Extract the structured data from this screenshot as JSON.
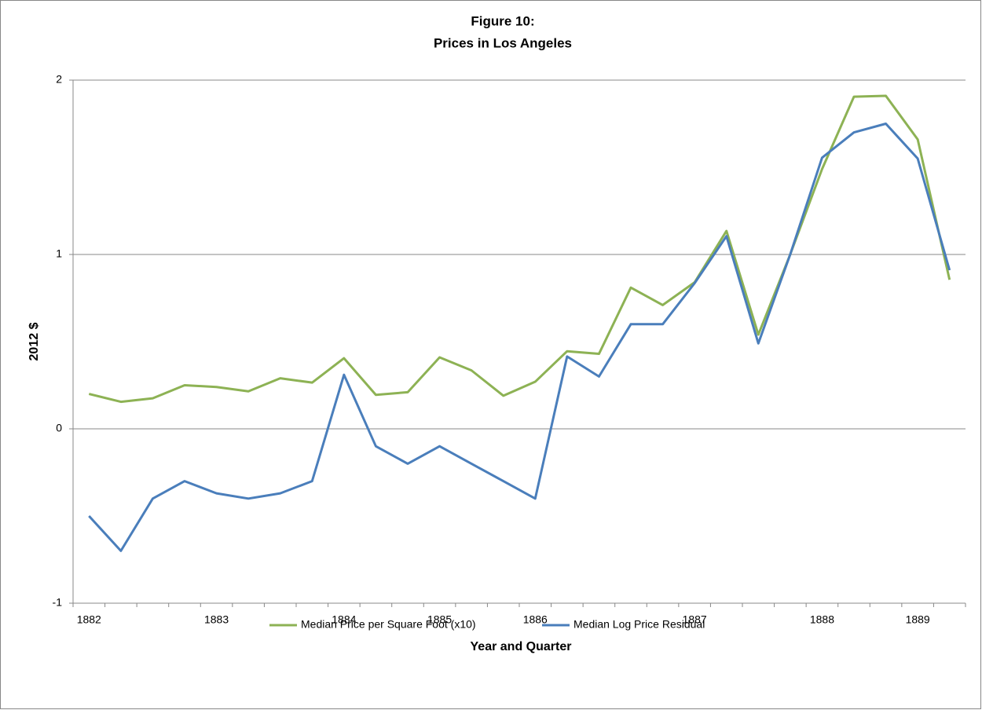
{
  "chart_data": {
    "type": "line",
    "title": "Figure 10:",
    "subtitle": "Prices in Los Angeles",
    "x_label": "Year and Quarter",
    "y_label": "2012 $",
    "categories": [
      "1882",
      null,
      null,
      null,
      "1883",
      null,
      null,
      null,
      "1884",
      null,
      null,
      "1885",
      null,
      null,
      "1886",
      null,
      null,
      null,
      null,
      "1887",
      null,
      null,
      null,
      "1888",
      null,
      null,
      "1889",
      null
    ],
    "series": [
      {
        "name": "Median Price per Square Foot (x10)",
        "color": "#8db254",
        "values": [
          0.2,
          0.155,
          0.175,
          0.25,
          0.24,
          0.215,
          0.29,
          0.265,
          0.405,
          0.195,
          0.21,
          0.41,
          0.335,
          0.19,
          0.27,
          0.445,
          0.43,
          0.81,
          0.71,
          0.84,
          1.135,
          0.54,
          1.0,
          1.49,
          1.905,
          1.91,
          1.66,
          0.855
        ]
      },
      {
        "name": "Median Log Price Residual",
        "color": "#4a7ebb",
        "values": [
          -0.5,
          -0.7,
          -0.4,
          -0.3,
          -0.37,
          -0.4,
          -0.37,
          -0.3,
          0.31,
          -0.1,
          -0.2,
          -0.1,
          -0.2,
          -0.3,
          -0.4,
          0.415,
          0.3,
          0.6,
          0.6,
          0.835,
          1.105,
          0.49,
          1.0,
          1.555,
          1.7,
          1.75,
          1.55,
          0.91
        ]
      }
    ],
    "ylim": [
      -1,
      2
    ],
    "yticks": [
      -1,
      0,
      1,
      2
    ],
    "grid": true,
    "legend": "bottom"
  }
}
